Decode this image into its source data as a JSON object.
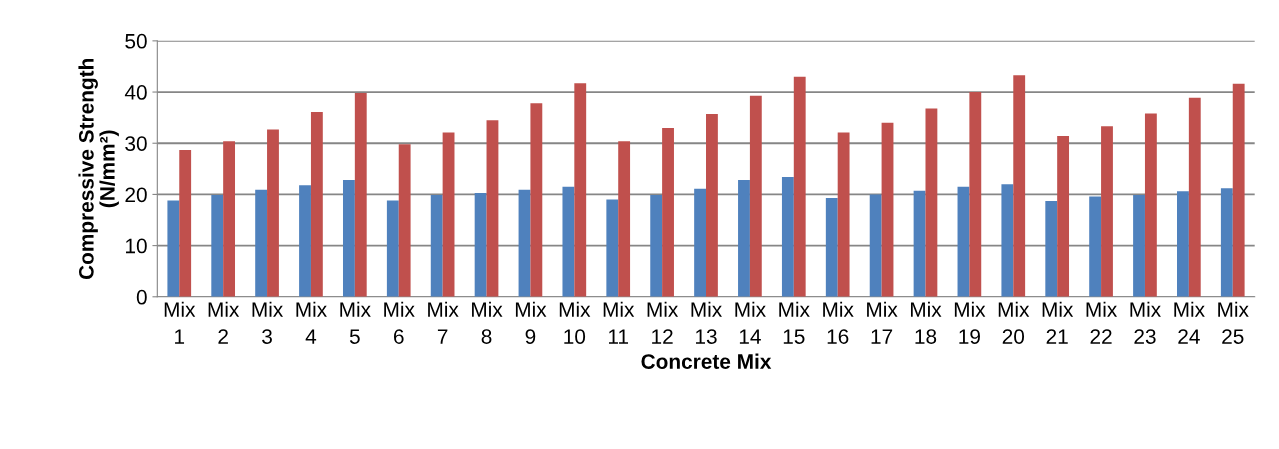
{
  "chart_data": {
    "type": "bar",
    "xlabel": "Concrete Mix",
    "ylabel": "Compressive Strength\n(N/mm²)",
    "categories": [
      "Mix\n1",
      "Mix\n2",
      "Mix\n3",
      "Mix\n4",
      "Mix\n5",
      "Mix\n6",
      "Mix\n7",
      "Mix\n8",
      "Mix\n9",
      "Mix\n10",
      "Mix\n11",
      "Mix\n12",
      "Mix\n13",
      "Mix\n14",
      "Mix\n15",
      "Mix\n16",
      "Mix\n17",
      "Mix\n18",
      "Mix\n19",
      "Mix\n20",
      "Mix\n21",
      "Mix\n22",
      "Mix\n23",
      "Mix\n24",
      "Mix\n25"
    ],
    "series": [
      {
        "color": "#4f81bd",
        "values": [
          18.8,
          19.9,
          20.9,
          21.8,
          22.8,
          18.8,
          19.9,
          20.3,
          20.9,
          21.5,
          19.0,
          19.9,
          21.1,
          22.8,
          23.4,
          19.3,
          20.0,
          20.7,
          21.5,
          22.0,
          18.7,
          19.6,
          19.9,
          20.6,
          21.2
        ]
      },
      {
        "color": "#c0504d",
        "values": [
          28.7,
          30.4,
          32.7,
          36.1,
          39.8,
          29.8,
          32.1,
          34.5,
          37.8,
          41.7,
          30.4,
          33.0,
          35.7,
          39.3,
          43.0,
          32.1,
          34.0,
          36.8,
          40.0,
          43.3,
          31.4,
          33.3,
          35.8,
          38.9,
          41.6
        ]
      }
    ],
    "ylim": [
      0,
      50
    ],
    "yticks": [
      0,
      10,
      20,
      30,
      40,
      50
    ],
    "grid": "y"
  }
}
